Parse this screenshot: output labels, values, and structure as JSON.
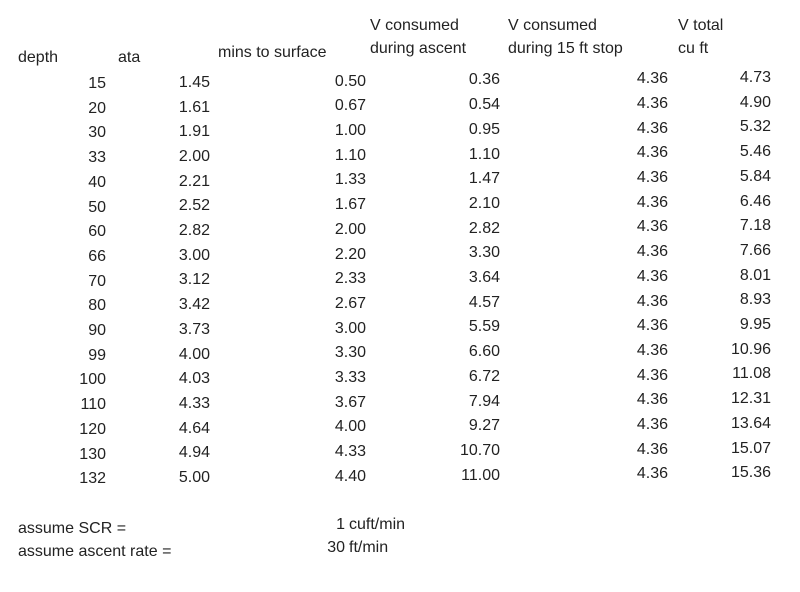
{
  "table": {
    "headers": [
      [
        "depth"
      ],
      [
        "ata"
      ],
      [
        "mins to surface"
      ],
      [
        "V consumed",
        "during ascent"
      ],
      [
        "V consumed",
        "during 15 ft stop"
      ],
      [
        "V total",
        "cu ft"
      ]
    ],
    "rows": [
      [
        "15",
        "1.45",
        "0.50",
        "0.36",
        "4.36",
        "4.73"
      ],
      [
        "20",
        "1.61",
        "0.67",
        "0.54",
        "4.36",
        "4.90"
      ],
      [
        "30",
        "1.91",
        "1.00",
        "0.95",
        "4.36",
        "5.32"
      ],
      [
        "33",
        "2.00",
        "1.10",
        "1.10",
        "4.36",
        "5.46"
      ],
      [
        "40",
        "2.21",
        "1.33",
        "1.47",
        "4.36",
        "5.84"
      ],
      [
        "50",
        "2.52",
        "1.67",
        "2.10",
        "4.36",
        "6.46"
      ],
      [
        "60",
        "2.82",
        "2.00",
        "2.82",
        "4.36",
        "7.18"
      ],
      [
        "66",
        "3.00",
        "2.20",
        "3.30",
        "4.36",
        "7.66"
      ],
      [
        "70",
        "3.12",
        "2.33",
        "3.64",
        "4.36",
        "8.01"
      ],
      [
        "80",
        "3.42",
        "2.67",
        "4.57",
        "4.36",
        "8.93"
      ],
      [
        "90",
        "3.73",
        "3.00",
        "5.59",
        "4.36",
        "9.95"
      ],
      [
        "99",
        "4.00",
        "3.30",
        "6.60",
        "4.36",
        "10.96"
      ],
      [
        "100",
        "4.03",
        "3.33",
        "6.72",
        "4.36",
        "11.08"
      ],
      [
        "110",
        "4.33",
        "3.67",
        "7.94",
        "4.36",
        "12.31"
      ],
      [
        "120",
        "4.64",
        "4.00",
        "9.27",
        "4.36",
        "13.64"
      ],
      [
        "130",
        "4.94",
        "4.33",
        "10.70",
        "4.36",
        "15.07"
      ],
      [
        "132",
        "5.00",
        "4.40",
        "11.00",
        "4.36",
        "15.36"
      ]
    ]
  },
  "notes": [
    {
      "label": "assume SCR =",
      "value": "1",
      "unit": "cuft/min"
    },
    {
      "label": "assume ascent rate =",
      "value": "30",
      "unit": "ft/min"
    }
  ]
}
